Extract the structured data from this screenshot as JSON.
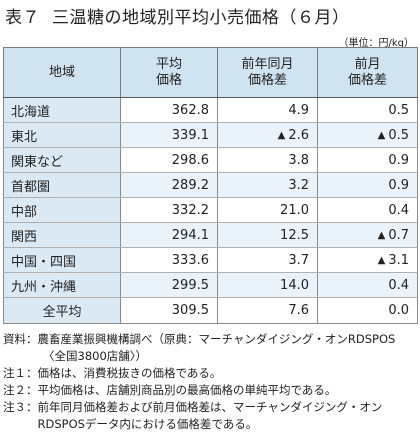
{
  "title": {
    "number": "表７",
    "text": "三温糖の地域別平均小売価格（６月）"
  },
  "unit": "（単位：円/kg）",
  "columns": [
    "地域",
    "平均\n価格",
    "前年同月\n価格差",
    "前月\n価格差"
  ],
  "columns_split": [
    [
      "地域"
    ],
    [
      "平均",
      "価格"
    ],
    [
      "前年同月",
      "価格差"
    ],
    [
      "前月",
      "価格差"
    ]
  ],
  "rows": [
    {
      "region": "北海道",
      "price": "362.8",
      "yoy": "4.9",
      "yoy_sign": "",
      "mom": "0.5",
      "mom_sign": ""
    },
    {
      "region": "東北",
      "price": "339.1",
      "yoy": "2.6",
      "yoy_sign": "▲",
      "mom": "0.5",
      "mom_sign": "▲"
    },
    {
      "region": "関東など",
      "price": "298.6",
      "yoy": "3.8",
      "yoy_sign": "",
      "mom": "0.9",
      "mom_sign": ""
    },
    {
      "region": "首都圏",
      "price": "289.2",
      "yoy": "3.2",
      "yoy_sign": "",
      "mom": "0.9",
      "mom_sign": ""
    },
    {
      "region": "中部",
      "price": "332.2",
      "yoy": "21.0",
      "yoy_sign": "",
      "mom": "0.4",
      "mom_sign": ""
    },
    {
      "region": "関西",
      "price": "294.1",
      "yoy": "12.5",
      "yoy_sign": "",
      "mom": "0.7",
      "mom_sign": "▲"
    },
    {
      "region": "中国・四国",
      "price": "333.6",
      "yoy": "3.7",
      "yoy_sign": "",
      "mom": "3.1",
      "mom_sign": "▲"
    },
    {
      "region": "九州・沖縄",
      "price": "299.5",
      "yoy": "14.0",
      "yoy_sign": "",
      "mom": "0.4",
      "mom_sign": ""
    }
  ],
  "total": {
    "region": "全平均",
    "price": "309.5",
    "yoy": "7.6",
    "yoy_sign": "",
    "mom": "0.0",
    "mom_sign": ""
  },
  "notes": [
    {
      "label": "資料：",
      "text": "農畜産業振興機構調べ（原典：マーチャンダイジング・オンRDSPOS"
    },
    {
      "label": "",
      "text": "〈全国3800店舗〉）",
      "indent": true
    },
    {
      "label": "注１：",
      "text": "価格は、消費税抜きの価格である。"
    },
    {
      "label": "注２：",
      "text": "平均価格は、店舗別商品別の最高価格の単純平均である。"
    },
    {
      "label": "注３：",
      "text": "前年同月価格差および前月価格差は、マーチャンダイジング・オンRDSPOSデータ内における価格差である。"
    }
  ]
}
